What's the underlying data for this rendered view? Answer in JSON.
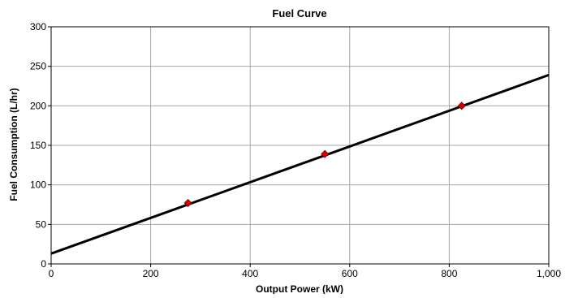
{
  "chart_data": {
    "type": "line",
    "title": "Fuel Curve",
    "xlabel": "Output Power (kW)",
    "ylabel": "Fuel Consumption (L/hr)",
    "xlim": [
      0,
      1000
    ],
    "ylim": [
      0,
      300
    ],
    "x_ticks": [
      0,
      200,
      400,
      600,
      800,
      1000
    ],
    "x_tick_labels": [
      "0",
      "200",
      "400",
      "600",
      "800",
      "1,000"
    ],
    "y_ticks": [
      0,
      50,
      100,
      150,
      200,
      250,
      300
    ],
    "y_tick_labels": [
      "0",
      "50",
      "100",
      "150",
      "200",
      "250",
      "300"
    ],
    "grid": true,
    "series": [
      {
        "kind": "line",
        "x": [
          0,
          1000
        ],
        "y": [
          13,
          239
        ],
        "color": "#000000"
      },
      {
        "kind": "scatter",
        "x": [
          275,
          550,
          825
        ],
        "y": [
          77,
          139,
          200
        ],
        "color": "#cc0000"
      }
    ]
  }
}
